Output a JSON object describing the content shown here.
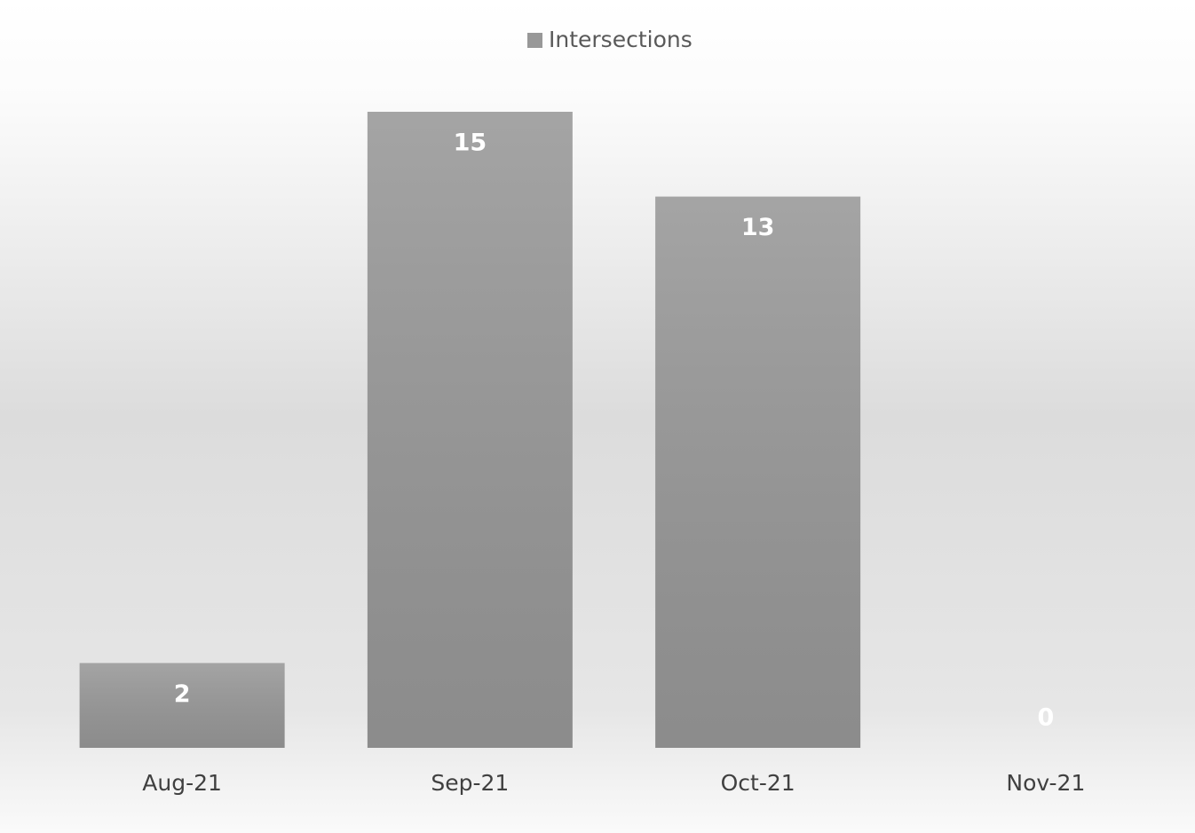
{
  "chart_data": {
    "type": "bar",
    "categories": [
      "Aug-21",
      "Sep-21",
      "Oct-21",
      "Nov-21"
    ],
    "series": [
      {
        "name": "Intersections",
        "color": "#989898",
        "values": [
          2,
          15,
          13,
          0
        ]
      }
    ]
  }
}
